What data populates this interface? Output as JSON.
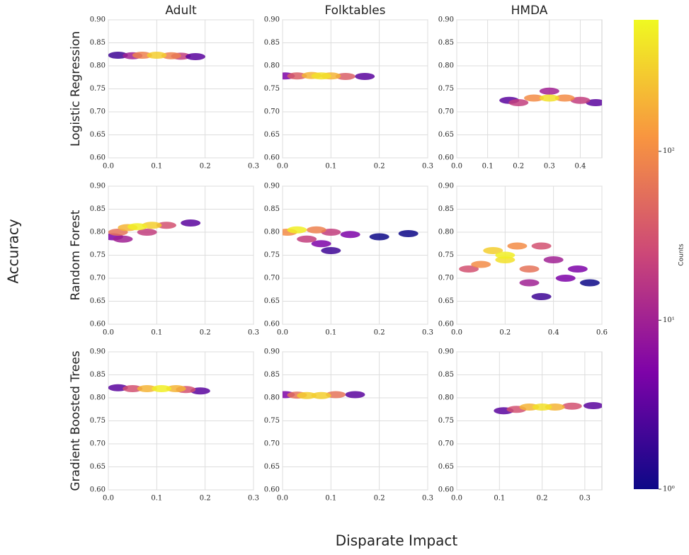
{
  "figure": {
    "xlabel": "Disparate Impact",
    "ylabel": "Accuracy"
  },
  "colorbar": {
    "label": "Counts",
    "log": true,
    "colormap": "plasma",
    "lim": [
      1,
      600
    ],
    "ticks": [
      {
        "value": 1,
        "label": "10⁰"
      },
      {
        "value": 10,
        "label": "10¹"
      },
      {
        "value": 100,
        "label": "10²"
      }
    ]
  },
  "chart_data": [
    {
      "type": "hexbin",
      "title": "Adult",
      "ylabel": "Logistic Regression",
      "grid": true,
      "xlim": [
        0,
        0.3
      ],
      "xticks": [
        {
          "value": 0,
          "label": "0.0"
        },
        0.1,
        0.2,
        0.3
      ],
      "ylim": [
        0.6,
        0.9
      ],
      "yticks": [
        {
          "value": 0.6,
          "label": "0.60"
        },
        0.65,
        {
          "value": 0.7,
          "label": "0.70"
        },
        0.75,
        {
          "value": 0.8,
          "label": "0.80"
        },
        0.85,
        {
          "value": 0.9,
          "label": "0.90"
        }
      ],
      "x": [
        0.02,
        0.05,
        0.15,
        0.18,
        0.07,
        0.13,
        0.1
      ],
      "y": [
        0.823,
        0.822,
        0.821,
        0.82,
        0.823,
        0.822,
        0.823
      ],
      "counts": [
        2,
        10,
        20,
        3,
        80,
        80,
        300
      ]
    },
    {
      "type": "hexbin",
      "title": "Folktables",
      "grid": true,
      "xlim": [
        0,
        0.3
      ],
      "xticks": [
        {
          "value": 0,
          "label": "0.0"
        },
        0.1,
        0.2,
        0.3
      ],
      "ylim": [
        0.6,
        0.9
      ],
      "yticks": [
        {
          "value": 0.6,
          "label": "0.60"
        },
        0.65,
        {
          "value": 0.7,
          "label": "0.70"
        },
        0.75,
        {
          "value": 0.8,
          "label": "0.80"
        },
        0.85,
        {
          "value": 0.9,
          "label": "0.90"
        }
      ],
      "x": [
        0.005,
        0.17,
        0.03,
        0.13,
        0.06,
        0.1,
        0.08
      ],
      "y": [
        0.778,
        0.777,
        0.778,
        0.777,
        0.779,
        0.778,
        0.778
      ],
      "counts": [
        5,
        3,
        40,
        40,
        200,
        200,
        400
      ]
    },
    {
      "type": "hexbin",
      "title": "HMDA",
      "grid": true,
      "xlim": [
        0,
        0.47
      ],
      "xticks": [
        {
          "value": 0,
          "label": "0.0"
        },
        0.1,
        0.2,
        0.3,
        0.4
      ],
      "ylim": [
        0.6,
        0.9
      ],
      "yticks": [
        {
          "value": 0.6,
          "label": "0.60"
        },
        0.65,
        {
          "value": 0.7,
          "label": "0.70"
        },
        0.75,
        {
          "value": 0.8,
          "label": "0.80"
        },
        0.85,
        {
          "value": 0.9,
          "label": "0.90"
        }
      ],
      "x": [
        0.17,
        0.45,
        0.2,
        0.4,
        0.3,
        0.25,
        0.35,
        0.3
      ],
      "y": [
        0.725,
        0.72,
        0.72,
        0.725,
        0.745,
        0.73,
        0.73,
        0.73
      ],
      "counts": [
        3,
        3,
        20,
        20,
        10,
        100,
        100,
        400
      ]
    },
    {
      "type": "hexbin",
      "ylabel": "Random Forest",
      "grid": true,
      "xlim": [
        0,
        0.3
      ],
      "xticks": [
        {
          "value": 0,
          "label": "0.0"
        },
        0.1,
        0.2,
        0.3
      ],
      "ylim": [
        0.6,
        0.9
      ],
      "yticks": [
        {
          "value": 0.6,
          "label": "0.60"
        },
        0.65,
        {
          "value": 0.7,
          "label": "0.70"
        },
        0.75,
        {
          "value": 0.8,
          "label": "0.80"
        },
        0.85,
        {
          "value": 0.9,
          "label": "0.90"
        }
      ],
      "x": [
        0.01,
        0.03,
        0.17,
        0.12,
        0.08,
        0.02,
        0.04,
        0.09,
        0.06
      ],
      "y": [
        0.79,
        0.785,
        0.82,
        0.815,
        0.8,
        0.8,
        0.81,
        0.815,
        0.812
      ],
      "counts": [
        5,
        10,
        3,
        30,
        20,
        60,
        200,
        300,
        500
      ]
    },
    {
      "type": "hexbin",
      "grid": true,
      "xlim": [
        0,
        0.3
      ],
      "xticks": [
        {
          "value": 0,
          "label": "0.0"
        },
        0.1,
        0.2,
        0.3
      ],
      "ylim": [
        0.6,
        0.9
      ],
      "yticks": [
        {
          "value": 0.6,
          "label": "0.60"
        },
        0.65,
        {
          "value": 0.7,
          "label": "0.70"
        },
        0.75,
        {
          "value": 0.8,
          "label": "0.80"
        },
        0.85,
        {
          "value": 0.9,
          "label": "0.90"
        }
      ],
      "x": [
        0.26,
        0.2,
        0.1,
        0.08,
        0.14,
        0.05,
        0.1,
        0.07,
        0.01,
        0.03
      ],
      "y": [
        0.797,
        0.79,
        0.76,
        0.775,
        0.795,
        0.785,
        0.8,
        0.805,
        0.8,
        0.805
      ],
      "counts": [
        1,
        1,
        2,
        5,
        5,
        20,
        20,
        80,
        100,
        500
      ]
    },
    {
      "type": "hexbin",
      "grid": true,
      "xlim": [
        0,
        0.6
      ],
      "xticks": [
        {
          "value": 0,
          "label": "0.0"
        },
        0.2,
        0.4,
        0.6
      ],
      "ylim": [
        0.6,
        0.9
      ],
      "yticks": [
        {
          "value": 0.6,
          "label": "0.60"
        },
        0.65,
        {
          "value": 0.7,
          "label": "0.70"
        },
        0.75,
        {
          "value": 0.8,
          "label": "0.80"
        },
        0.85,
        {
          "value": 0.9,
          "label": "0.90"
        }
      ],
      "x": [
        0.55,
        0.35,
        0.45,
        0.5,
        0.3,
        0.4,
        0.05,
        0.35,
        0.3,
        0.1,
        0.25,
        0.15,
        0.2,
        0.2
      ],
      "y": [
        0.69,
        0.66,
        0.7,
        0.72,
        0.69,
        0.74,
        0.72,
        0.77,
        0.72,
        0.73,
        0.77,
        0.76,
        0.74,
        0.75
      ],
      "counts": [
        1,
        2,
        5,
        5,
        10,
        10,
        30,
        30,
        60,
        100,
        100,
        300,
        400,
        500
      ]
    },
    {
      "type": "hexbin",
      "ylabel": "Gradient Boosted Trees",
      "grid": true,
      "xlim": [
        0,
        0.3
      ],
      "xticks": [
        {
          "value": 0,
          "label": "0.0"
        },
        0.1,
        0.2,
        0.3
      ],
      "ylim": [
        0.6,
        0.9
      ],
      "yticks": [
        {
          "value": 0.6,
          "label": "0.60"
        },
        0.65,
        {
          "value": 0.7,
          "label": "0.70"
        },
        0.75,
        {
          "value": 0.8,
          "label": "0.80"
        },
        0.85,
        {
          "value": 0.9,
          "label": "0.90"
        }
      ],
      "x": [
        0.02,
        0.19,
        0.05,
        0.16,
        0.08,
        0.14,
        0.11
      ],
      "y": [
        0.822,
        0.815,
        0.82,
        0.818,
        0.82,
        0.82,
        0.82
      ],
      "counts": [
        3,
        3,
        30,
        30,
        200,
        200,
        500
      ]
    },
    {
      "type": "hexbin",
      "grid": true,
      "xlim": [
        0,
        0.3
      ],
      "xticks": [
        {
          "value": 0,
          "label": "0.0"
        },
        0.1,
        0.2,
        0.3
      ],
      "ylim": [
        0.6,
        0.9
      ],
      "yticks": [
        {
          "value": 0.6,
          "label": "0.60"
        },
        0.65,
        {
          "value": 0.7,
          "label": "0.70"
        },
        0.75,
        {
          "value": 0.8,
          "label": "0.80"
        },
        0.85,
        {
          "value": 0.9,
          "label": "0.90"
        }
      ],
      "x": [
        0.005,
        0.15,
        0.03,
        0.11,
        0.05,
        0.08
      ],
      "y": [
        0.807,
        0.807,
        0.806,
        0.807,
        0.805,
        0.805
      ],
      "counts": [
        5,
        3,
        60,
        60,
        300,
        300
      ]
    },
    {
      "type": "hexbin",
      "grid": true,
      "xlim": [
        0,
        0.34
      ],
      "xticks": [
        {
          "value": 0,
          "label": "0.0"
        },
        0.1,
        0.2,
        0.3
      ],
      "ylim": [
        0.6,
        0.9
      ],
      "yticks": [
        {
          "value": 0.6,
          "label": "0.60"
        },
        0.65,
        {
          "value": 0.7,
          "label": "0.70"
        },
        0.75,
        {
          "value": 0.8,
          "label": "0.80"
        },
        0.85,
        {
          "value": 0.9,
          "label": "0.90"
        }
      ],
      "x": [
        0.11,
        0.32,
        0.14,
        0.27,
        0.17,
        0.23,
        0.2
      ],
      "y": [
        0.772,
        0.783,
        0.775,
        0.782,
        0.78,
        0.78,
        0.78
      ],
      "counts": [
        3,
        3,
        30,
        30,
        200,
        200,
        400
      ]
    }
  ]
}
